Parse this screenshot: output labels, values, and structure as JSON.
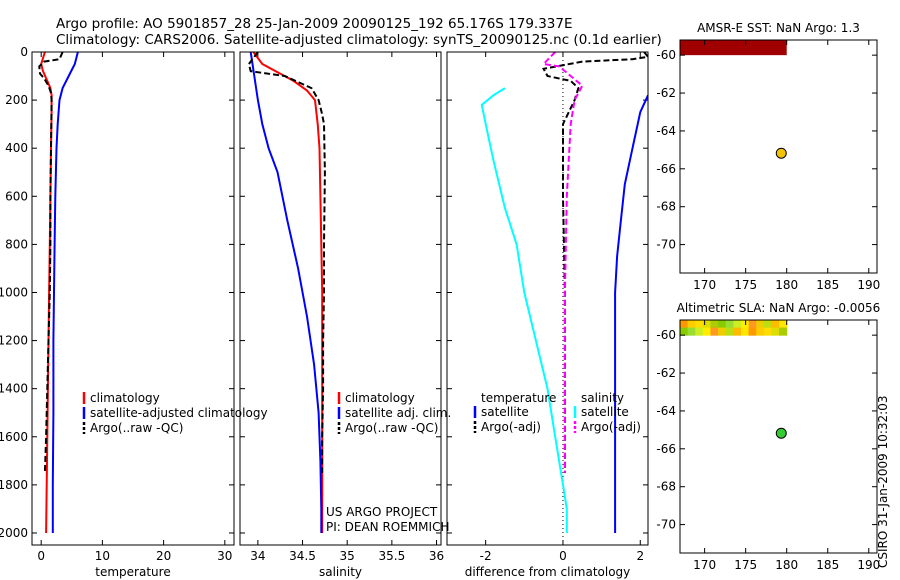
{
  "header": {
    "line1": "Argo profile: AO 5901857_28 25-Jan-2009 20090125_192 65.176S 179.337E",
    "line2": "Climatology: CARS2006. Satellite-adjusted climatology: synTS_20090125.nc (0.1d earlier)"
  },
  "side_label": "CSIRO 31-Jan-2009 10:32:03",
  "colors": {
    "climatology": "#ff0000",
    "satellite": "#0000ff",
    "argo": "#000000",
    "salinity_sat": "#00ffff",
    "salinity_argo": "#ff00ff",
    "sst_patch": "#a00000",
    "float_marker": "#f5c400",
    "float_marker2": "#33cc33"
  },
  "chart_data": [
    {
      "type": "line",
      "id": "temperature",
      "xlabel": "temperature",
      "ylabel": "",
      "xlim": [
        -1.5,
        31.5
      ],
      "ylim": [
        2050,
        0
      ],
      "xticks": [
        0,
        10,
        20,
        30
      ],
      "yticks": [
        0,
        200,
        400,
        600,
        800,
        1000,
        1200,
        1400,
        1600,
        1800,
        2000
      ],
      "legend": [
        "climatology",
        "satellite-adjusted climatology",
        "Argo(..raw -QC)"
      ],
      "series": [
        {
          "name": "climatology",
          "color": "#ff0000",
          "dash": "",
          "x": [
            0.6,
            0.0,
            0.3,
            1.0,
            1.5,
            1.7,
            1.7,
            1.6,
            1.5,
            1.4,
            1.3,
            1.2,
            1.1,
            1.0,
            0.9,
            0.8
          ],
          "y": [
            0,
            50,
            80,
            120,
            150,
            180,
            250,
            400,
            600,
            800,
            1000,
            1200,
            1400,
            1600,
            1800,
            2000
          ]
        },
        {
          "name": "satellite-adjusted climatology",
          "color": "#0000ff",
          "dash": "",
          "x": [
            6.0,
            5.5,
            4.5,
            3.5,
            3.0,
            2.7,
            2.5,
            2.3,
            2.2,
            2.1,
            2.0,
            2.0,
            1.9,
            1.9
          ],
          "y": [
            0,
            50,
            100,
            150,
            200,
            300,
            400,
            600,
            800,
            1000,
            1200,
            1500,
            1800,
            2000
          ]
        },
        {
          "name": "Argo(..raw -QC)",
          "color": "#000000",
          "dash": "6,3",
          "x": [
            3.5,
            3.0,
            0.5,
            -0.3,
            -0.2,
            0.5,
            1.2,
            1.6,
            1.7,
            1.6,
            1.5,
            1.5,
            1.4,
            1.2,
            1.0,
            0.8,
            0.6
          ],
          "y": [
            0,
            30,
            40,
            60,
            90,
            110,
            140,
            170,
            200,
            400,
            600,
            800,
            1000,
            1200,
            1400,
            1600,
            1750
          ]
        }
      ]
    },
    {
      "type": "line",
      "id": "salinity",
      "xlabel": "salinity",
      "ylabel": "",
      "xlim": [
        33.8,
        36.05
      ],
      "ylim": [
        2050,
        0
      ],
      "xticks": [
        34,
        34.5,
        35,
        35.5,
        36
      ],
      "xticklabels": [
        "34",
        "34.5",
        "35",
        "35.5",
        "36"
      ],
      "yticks": [
        0,
        200,
        400,
        600,
        800,
        1000,
        1200,
        1400,
        1600,
        1800,
        2000
      ],
      "legend": [
        "climatology",
        "satellite adj. clim.",
        "Argo(..raw -QC)"
      ],
      "annotation": [
        "US ARGO PROJECT",
        "PI: DEAN ROEMMICH"
      ],
      "series": [
        {
          "name": "climatology",
          "color": "#ff0000",
          "dash": "",
          "x": [
            33.95,
            34.05,
            34.2,
            34.4,
            34.55,
            34.64,
            34.67,
            34.69,
            34.7,
            34.71,
            34.72,
            34.72,
            34.72,
            34.72
          ],
          "y": [
            0,
            50,
            80,
            120,
            160,
            200,
            300,
            400,
            600,
            800,
            1000,
            1500,
            1800,
            2000
          ]
        },
        {
          "name": "satellite adj. clim.",
          "color": "#0000ff",
          "dash": "",
          "x": [
            33.92,
            33.96,
            34.0,
            34.05,
            34.12,
            34.22,
            34.33,
            34.45,
            34.55,
            34.63,
            34.68,
            34.7,
            34.71,
            34.71
          ],
          "y": [
            0,
            100,
            200,
            300,
            400,
            500,
            700,
            900,
            1100,
            1300,
            1500,
            1700,
            1900,
            2000
          ]
        },
        {
          "name": "Argo(..raw -QC)",
          "color": "#000000",
          "dash": "6,3",
          "x": [
            34.0,
            33.9,
            33.92,
            34.3,
            34.6,
            34.68,
            34.72,
            34.74,
            34.75,
            34.74,
            34.74,
            34.73,
            34.73,
            34.72,
            34.72
          ],
          "y": [
            0,
            50,
            80,
            100,
            150,
            200,
            260,
            300,
            500,
            800,
            1000,
            1200,
            1400,
            1600,
            1750
          ]
        }
      ]
    },
    {
      "type": "line",
      "id": "difference",
      "xlabel": "difference from climatology",
      "ylabel": "",
      "xlim": [
        -3.0,
        2.2
      ],
      "ylim": [
        2050,
        0
      ],
      "xticks": [
        -2,
        0,
        2
      ],
      "yticks": [
        0,
        200,
        400,
        600,
        800,
        1000,
        1200,
        1400,
        1600,
        1800,
        2000
      ],
      "legend_left": [
        "temperature",
        "satellite",
        "Argo(-adj)"
      ],
      "legend_right": [
        "salinity",
        "satellite",
        "Argo(-adj)"
      ],
      "series": [
        {
          "name": "temperature satellite",
          "color": "#0000ff",
          "dash": "",
          "x": [
            2.2,
            2.0,
            1.8,
            1.6,
            1.5,
            1.4,
            1.35,
            1.35,
            1.35,
            1.35,
            1.35
          ],
          "y": [
            180,
            250,
            400,
            550,
            700,
            850,
            1000,
            1200,
            1500,
            1800,
            2000
          ]
        },
        {
          "name": "temperature Argo(-adj)",
          "color": "#000000",
          "dash": "6,3",
          "x": [
            2.1,
            2.2,
            1.8,
            0.5,
            -0.5,
            -0.4,
            0.2,
            0.4,
            0.3,
            0.0,
            0.0,
            0.05,
            0.05,
            0.05
          ],
          "y": [
            0,
            20,
            30,
            40,
            70,
            100,
            120,
            150,
            200,
            300,
            600,
            1000,
            1400,
            1750
          ]
        },
        {
          "name": "salinity satellite",
          "color": "#00ffff",
          "dash": "",
          "x": [
            -1.5,
            -1.8,
            -2.1,
            -2.0,
            -1.8,
            -1.5,
            -1.2,
            -1.0,
            -0.7,
            -0.4,
            -0.2,
            0.0,
            0.1,
            0.1
          ],
          "y": [
            150,
            180,
            220,
            300,
            450,
            650,
            800,
            1000,
            1200,
            1400,
            1600,
            1800,
            1900,
            2000
          ]
        },
        {
          "name": "salinity Argo(-adj)",
          "color": "#ff00ff",
          "dash": "6,3",
          "x": [
            -0.2,
            -0.5,
            -0.1,
            0.2,
            0.5,
            0.3,
            0.2,
            0.1,
            0.05,
            0.05,
            0.05
          ],
          "y": [
            0,
            50,
            60,
            100,
            140,
            200,
            300,
            600,
            1000,
            1400,
            1750
          ]
        }
      ]
    },
    {
      "type": "heatmap",
      "id": "sst_map",
      "title": "AMSR-E SST: NaN Argo: 1.3",
      "xlim": [
        167,
        191
      ],
      "ylim": [
        -71.5,
        -59.2
      ],
      "xticks": [
        170,
        175,
        180,
        185,
        190
      ],
      "yticks": [
        -60,
        -62,
        -64,
        -66,
        -68,
        -70
      ],
      "patch": {
        "x0": 167,
        "x1": 180,
        "y0": -60,
        "y1": -59.2,
        "color": "#a00000"
      },
      "float_position": {
        "lon": 179.337,
        "lat": -65.176
      }
    },
    {
      "type": "heatmap",
      "id": "sla_map",
      "title": "Altimetric SLA: NaN Argo: -0.0056",
      "xlim": [
        167,
        191
      ],
      "ylim": [
        -71.5,
        -59.2
      ],
      "xticks": [
        170,
        175,
        180,
        185,
        190
      ],
      "yticks": [
        -60,
        -62,
        -64,
        -66,
        -68,
        -70
      ],
      "patch_colors": [
        "#ff9900",
        "#ffcc00",
        "#ffdd00",
        "#dddd00",
        "#aacc00",
        "#88cc00",
        "#99dd33",
        "#ccee22",
        "#ffee00",
        "#ff9922",
        "#eecc00",
        "#bbdd11",
        "#ffbb00",
        "#ffe600"
      ],
      "float_position": {
        "lon": 179.337,
        "lat": -65.176
      }
    }
  ]
}
